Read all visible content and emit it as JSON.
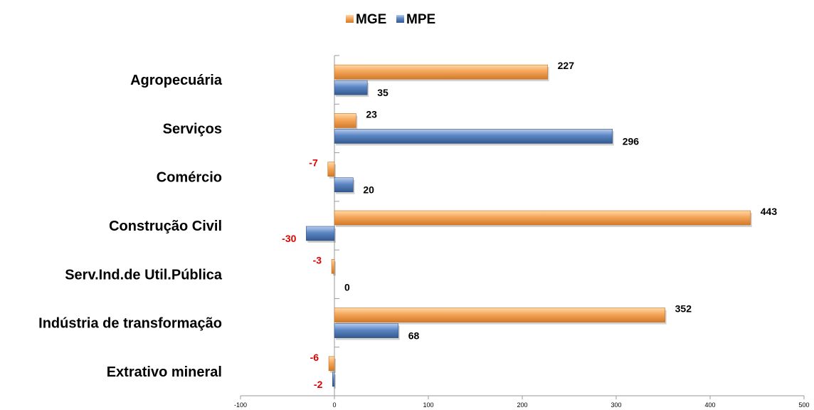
{
  "chart_data": {
    "type": "bar",
    "orientation": "horizontal",
    "categories": [
      "Agropecuária",
      "Serviços",
      "Comércio",
      "Construção Civil",
      "Serv.Ind.de Util.Pública",
      "Indústria de transformação",
      "Extrativo mineral"
    ],
    "series": [
      {
        "name": "MGE",
        "color": "#f0a050",
        "values": [
          227,
          23,
          -7,
          443,
          -3,
          352,
          -6
        ]
      },
      {
        "name": "MPE",
        "color": "#5b86c4",
        "values": [
          35,
          296,
          20,
          -30,
          0,
          68,
          -2
        ]
      }
    ],
    "xlim": [
      -100,
      500
    ],
    "xticks": [
      "-100",
      "0",
      "100",
      "200",
      "300",
      "400",
      "500"
    ],
    "xtick_values": [
      -100,
      0,
      100,
      200,
      300,
      400,
      500
    ],
    "grid": false,
    "legend_position": "top",
    "positive_label_color": "#000000",
    "negative_label_color": "#e00000"
  }
}
